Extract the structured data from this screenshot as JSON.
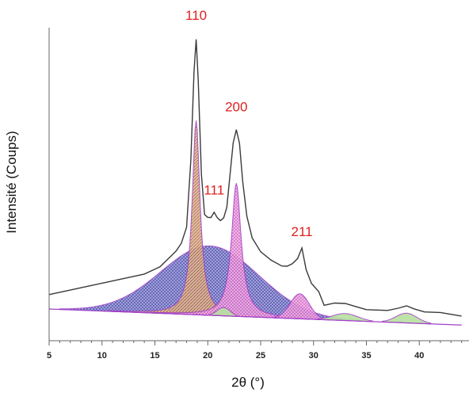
{
  "chart_data": {
    "type": "line",
    "title": "",
    "xlabel": "2θ (°)",
    "ylabel": "Intensité (Coups)",
    "xlim": [
      5,
      44
    ],
    "ylim": [
      0,
      100
    ],
    "xticks": [
      5,
      10,
      15,
      20,
      25,
      30,
      35,
      40
    ],
    "grid": false,
    "legend": "none",
    "colors": {
      "measured": "#3a3a3a",
      "fit": "#a040c8",
      "amorphous_fill": "#5c5cb8",
      "crystalline_fill": "#e080d0",
      "peak_110_fill": "#c08860",
      "minor_fill": "#98d080",
      "labels": "#e02020"
    },
    "peak_labels": [
      {
        "text": "110",
        "x": 18.9,
        "y": 100
      },
      {
        "text": "111",
        "x": 20.6,
        "y": 37
      },
      {
        "text": "200",
        "x": 22.7,
        "y": 67
      },
      {
        "text": "211",
        "x": 28.9,
        "y": 22
      }
    ],
    "series": [
      {
        "x": [
          5,
          6,
          7,
          8,
          9,
          10,
          11,
          12,
          13,
          14,
          15,
          15.5,
          16,
          16.5,
          17,
          17.5,
          18,
          18.4,
          18.7,
          18.9,
          19.1,
          19.4,
          19.7,
          20,
          20.3,
          20.6,
          20.9,
          21.2,
          21.5,
          21.8,
          22.1,
          22.4,
          22.7,
          23,
          23.3,
          23.7,
          24.2,
          25,
          26,
          27,
          27.5,
          28,
          28.5,
          28.9,
          29.3,
          29.8,
          30.5,
          31,
          32,
          33,
          34,
          35,
          36,
          37,
          38,
          38.8,
          39.5,
          40.5,
          42,
          44
        ],
        "y": [
          3,
          4,
          5,
          6,
          7,
          8,
          9,
          10,
          11,
          12,
          14,
          15,
          17,
          19,
          21,
          24,
          30,
          55,
          88,
          100,
          85,
          50,
          35,
          34,
          34,
          36,
          34,
          33,
          34,
          38,
          50,
          62,
          67,
          62,
          48,
          35,
          27,
          22,
          19,
          17,
          17,
          18,
          20,
          24,
          16,
          11,
          8,
          3,
          4,
          4,
          3,
          2,
          2,
          2,
          3,
          4,
          3,
          2,
          2,
          1
        ]
      }
    ]
  }
}
